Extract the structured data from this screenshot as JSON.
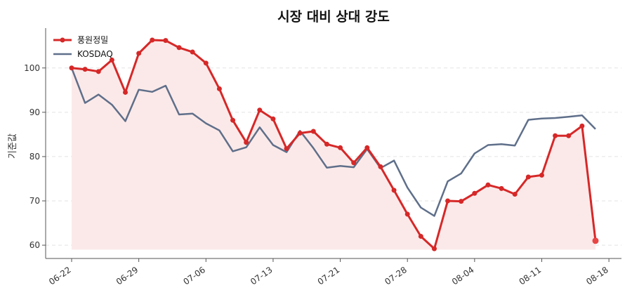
{
  "chart_data": {
    "type": "line",
    "title": "시장 대비 상대 강도",
    "xlabel": "",
    "ylabel": "기준값",
    "x_tick_labels": [
      "06-22",
      "06-29",
      "07-06",
      "07-13",
      "07-21",
      "07-28",
      "08-04",
      "08-11",
      "08-18"
    ],
    "x_tick_indices": [
      0,
      5,
      10,
      15,
      20,
      25,
      30,
      35,
      40
    ],
    "y_ticks": [
      60,
      70,
      80,
      90,
      100
    ],
    "ylim": [
      57,
      109
    ],
    "grid": "y-dashed",
    "legend": "top-left",
    "area_baseline": 59,
    "series": [
      {
        "name": "풍원정밀",
        "color": "#d62828",
        "fill": "#fbe9e9",
        "markers": true,
        "values": [
          100.0,
          99.7,
          99.2,
          101.8,
          94.5,
          103.3,
          106.3,
          106.2,
          104.6,
          103.6,
          101.1,
          95.3,
          88.2,
          83.2,
          90.5,
          88.5,
          81.8,
          85.3,
          85.7,
          82.8,
          82.0,
          78.6,
          82.0,
          77.7,
          72.4,
          67.0,
          62.0,
          59.2,
          70.0,
          69.9,
          71.7,
          73.6,
          72.8,
          71.5,
          75.4,
          75.8,
          84.7,
          84.7,
          86.9,
          61.0
        ]
      },
      {
        "name": "KOSDAQ",
        "color": "#5f6f8a",
        "markers": false,
        "values": [
          100.0,
          92.1,
          94.0,
          91.7,
          88.0,
          95.1,
          94.6,
          96.0,
          89.5,
          89.7,
          87.5,
          85.9,
          81.2,
          82.1,
          86.6,
          82.6,
          81.0,
          85.8,
          81.9,
          77.5,
          77.9,
          77.6,
          81.7,
          77.4,
          79.1,
          73.0,
          68.5,
          66.6,
          74.4,
          76.2,
          80.7,
          82.6,
          82.8,
          82.5,
          88.3,
          88.6,
          88.7,
          89.0,
          89.3,
          86.2
        ]
      }
    ]
  }
}
